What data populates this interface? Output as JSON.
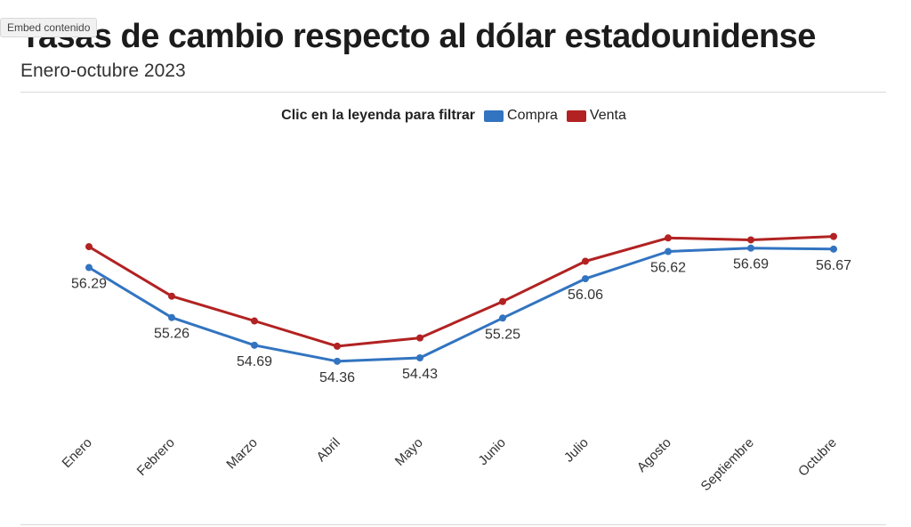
{
  "embed_label": "Embed contenido",
  "title": "Tasas de cambio respecto al dólar estadounidense",
  "subtitle": "Enero-octubre 2023",
  "legend": {
    "title": "Clic en la leyenda para filtrar",
    "items": [
      {
        "label": "Compra",
        "color": "#3274c0"
      },
      {
        "label": "Venta",
        "color": "#b22222"
      }
    ]
  },
  "chart_data": {
    "type": "line",
    "categories": [
      "Enero",
      "Febrero",
      "Marzo",
      "Abril",
      "Mayo",
      "Junio",
      "Julio",
      "Agosto",
      "Septiembre",
      "Octubre"
    ],
    "series": [
      {
        "name": "Compra",
        "color": "#3274c0",
        "values": [
          56.29,
          55.26,
          54.69,
          54.36,
          54.43,
          55.25,
          56.06,
          56.62,
          56.69,
          56.67
        ],
        "value_labels": [
          "56.29",
          "55.26",
          "54.69",
          "54.36",
          "54.43",
          "55.25",
          "56.06",
          "56.62",
          "56.69",
          "56.67"
        ]
      },
      {
        "name": "Venta",
        "color": "#b22222",
        "values": [
          56.72,
          55.7,
          55.19,
          54.67,
          54.84,
          55.59,
          56.42,
          56.9,
          56.86,
          56.93
        ]
      }
    ],
    "title": "Tasas de cambio respecto al dólar estadounidense",
    "xlabel": "",
    "ylabel": "",
    "ylim": [
      53.0,
      58.5
    ],
    "grid": false,
    "legend_position": "top-center"
  }
}
